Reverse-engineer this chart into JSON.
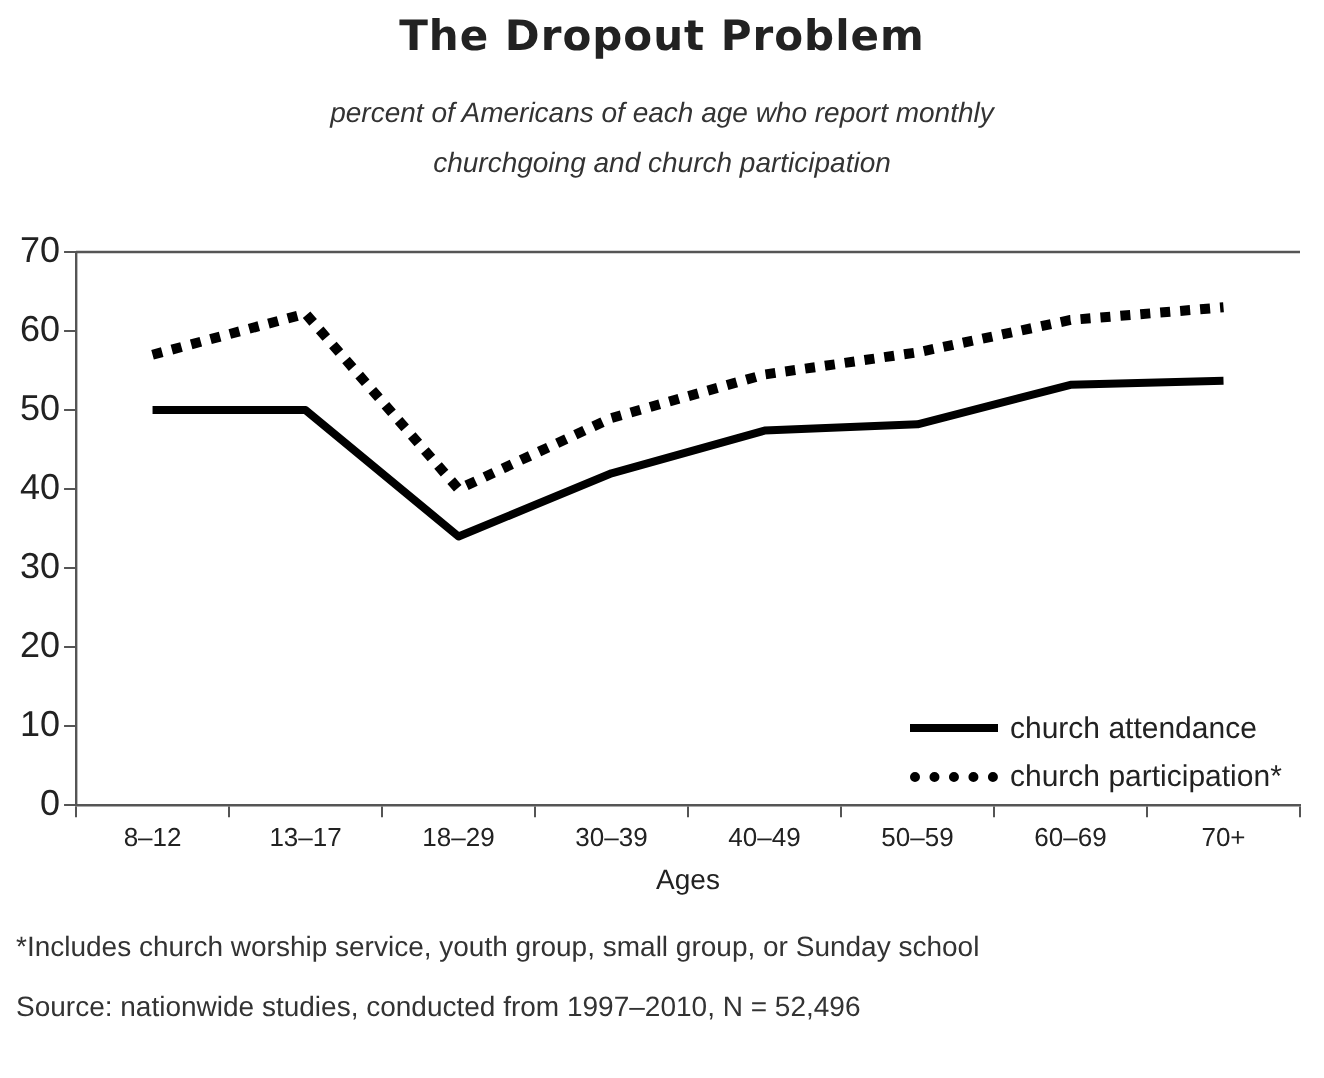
{
  "chart_data": {
    "type": "line",
    "title": "The Dropout Problem",
    "subtitle": "percent of Americans of each age who report monthly churchgoing and church participation",
    "xlabel": "Ages",
    "categories": [
      "8–12",
      "13–17",
      "18–29",
      "30–39",
      "40–49",
      "50–59",
      "60–69",
      "70+"
    ],
    "series": [
      {
        "name": "church attendance",
        "color": "#000000",
        "line_style": "solid",
        "values": [
          50,
          50,
          34,
          42,
          47.4,
          48.2,
          53.2,
          53.7
        ]
      },
      {
        "name": "church participation*",
        "color": "#000000",
        "line_style": "dotted",
        "values": [
          57,
          62.2,
          40,
          49,
          54.5,
          57.3,
          61.4,
          63
        ]
      }
    ],
    "ylim": [
      0,
      70
    ],
    "yticks": [
      0,
      10,
      20,
      30,
      40,
      50,
      60,
      70
    ],
    "grid": false,
    "legend": "bottom right",
    "marker": "none",
    "annotations": [
      "*Includes church worship service, youth group, small group, or Sunday school",
      "Source: nationwide studies, conducted from 1997–2010, N = 52,496"
    ]
  }
}
